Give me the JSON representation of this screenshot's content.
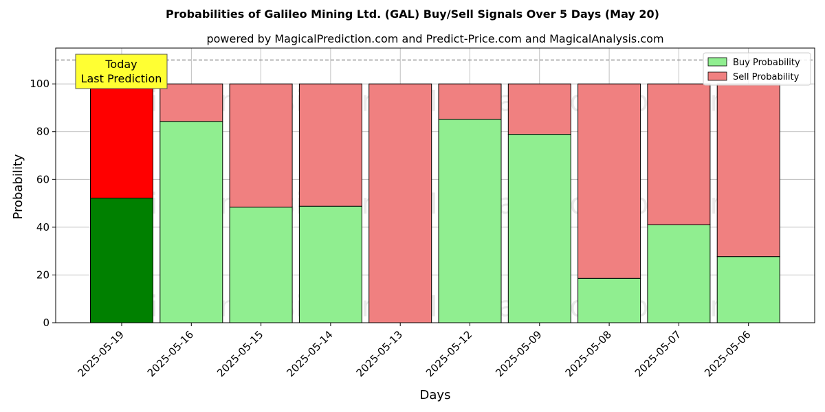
{
  "chart_data": {
    "type": "bar",
    "stacked": true,
    "title": "Probabilities of Galileo Mining Ltd. (GAL) Buy/Sell Signals Over 5 Days (May 20)",
    "subtitle": "powered by MagicalPrediction.com and Predict-Price.com and MagicalAnalysis.com",
    "xlabel": "Days",
    "ylabel": "Probability",
    "ylim": [
      0,
      115
    ],
    "yticks": [
      0,
      20,
      40,
      60,
      80,
      100
    ],
    "threshold_line": 110,
    "grid": true,
    "legend_position": "top-right",
    "categories": [
      "2025-05-19",
      "2025-05-16",
      "2025-05-15",
      "2025-05-14",
      "2025-05-13",
      "2025-05-12",
      "2025-05-09",
      "2025-05-08",
      "2025-05-07",
      "2025-05-06"
    ],
    "series": [
      {
        "name": "Buy Probability",
        "color": "#90ee90",
        "highlight_color": "#008000",
        "values": [
          52.2,
          84.3,
          48.4,
          48.8,
          0,
          85.2,
          78.9,
          18.6,
          41.0,
          27.7
        ]
      },
      {
        "name": "Sell Probability",
        "color": "#f08080",
        "highlight_color": "#ff0000",
        "values": [
          47.8,
          15.7,
          51.6,
          51.2,
          100,
          14.8,
          21.1,
          81.4,
          59.0,
          72.3
        ]
      }
    ],
    "highlight_index": 0,
    "annotation": {
      "lines": [
        "Today",
        "Last Prediction"
      ],
      "fill": "#ffff33"
    },
    "watermarks": [
      "MagicalAnalysis.com",
      "MagicalPrediction.com"
    ]
  }
}
